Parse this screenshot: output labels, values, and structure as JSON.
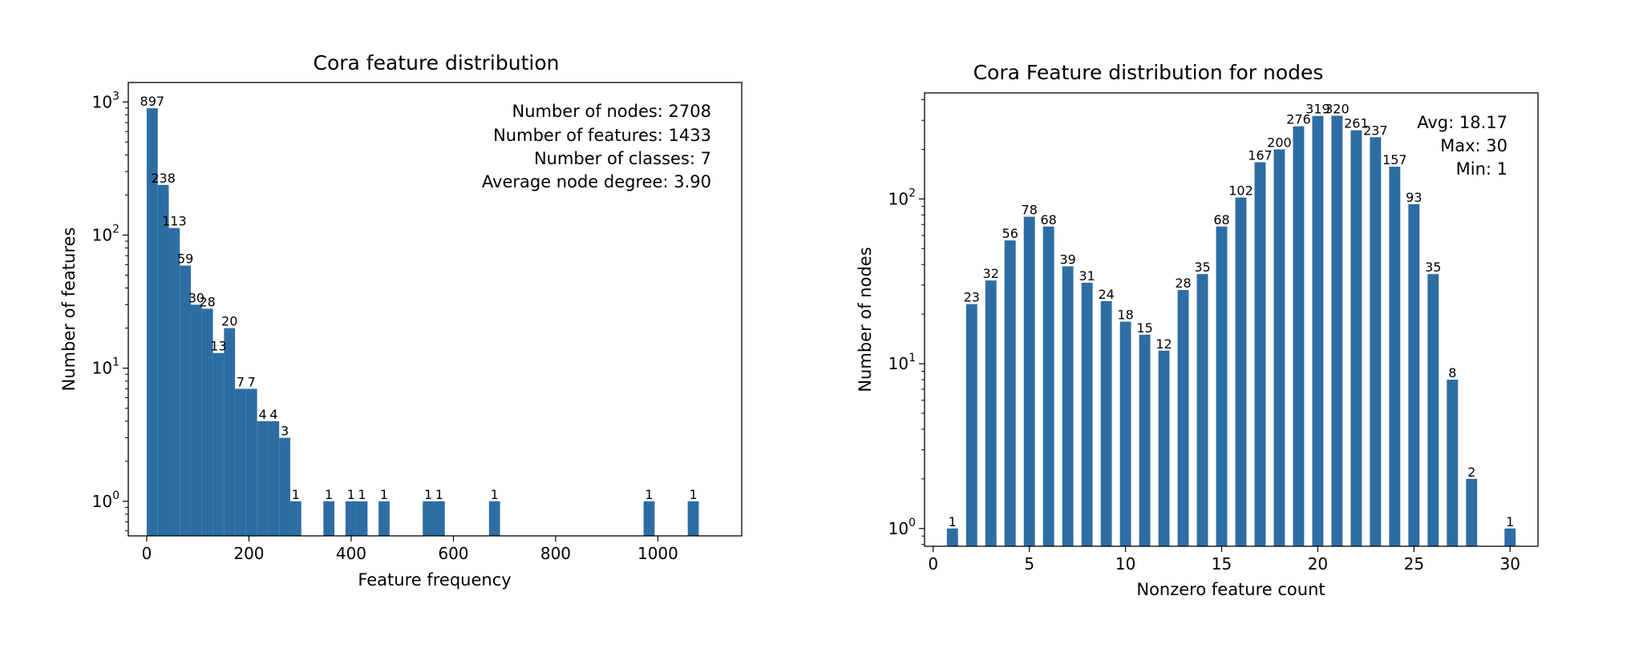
{
  "chart_data": [
    {
      "type": "bar",
      "title": "Cora feature distribution",
      "xlabel": "Feature frequency",
      "ylabel": "Number of features",
      "yscale": "log",
      "xlim": [
        -36.0,
        1164.0
      ],
      "ylim": [
        0.55,
        1400
      ],
      "xticks": [
        0,
        200,
        400,
        600,
        800,
        1000
      ],
      "yticks": [
        1,
        10,
        100,
        1000
      ],
      "bar_color": "#2e6da4",
      "annotations": [
        "Number of nodes: 2708",
        "Number of features: 1433",
        "Number of classes: 7",
        "Average node degree: 3.90"
      ],
      "bins": [
        {
          "x0": 0,
          "x1": 21.6,
          "value": 897
        },
        {
          "x0": 21.6,
          "x1": 43.2,
          "value": 238
        },
        {
          "x0": 43.2,
          "x1": 64.8,
          "value": 113
        },
        {
          "x0": 64.8,
          "x1": 86.4,
          "value": 59
        },
        {
          "x0": 86.4,
          "x1": 108.0,
          "value": 30
        },
        {
          "x0": 108.0,
          "x1": 129.6,
          "value": 28
        },
        {
          "x0": 129.6,
          "x1": 151.2,
          "value": 13
        },
        {
          "x0": 151.2,
          "x1": 172.8,
          "value": 20
        },
        {
          "x0": 172.8,
          "x1": 194.4,
          "value": 7
        },
        {
          "x0": 194.4,
          "x1": 216.0,
          "value": 7
        },
        {
          "x0": 216.0,
          "x1": 237.6,
          "value": 4
        },
        {
          "x0": 237.6,
          "x1": 259.2,
          "value": 4
        },
        {
          "x0": 259.2,
          "x1": 280.8,
          "value": 3
        },
        {
          "x0": 280.8,
          "x1": 302.4,
          "value": 1
        },
        {
          "x0": 345.6,
          "x1": 367.2,
          "value": 1
        },
        {
          "x0": 388.8,
          "x1": 410.4,
          "value": 1
        },
        {
          "x0": 410.4,
          "x1": 432.0,
          "value": 1
        },
        {
          "x0": 453.6,
          "x1": 475.2,
          "value": 1
        },
        {
          "x0": 540.0,
          "x1": 561.6,
          "value": 1
        },
        {
          "x0": 561.6,
          "x1": 583.2,
          "value": 1
        },
        {
          "x0": 669.6,
          "x1": 691.2,
          "value": 1
        },
        {
          "x0": 972.0,
          "x1": 993.6,
          "value": 1
        },
        {
          "x0": 1058.4,
          "x1": 1080.0,
          "value": 1
        }
      ]
    },
    {
      "type": "bar",
      "title": "Cora Feature distribution for nodes",
      "xlabel": "Nonzero feature count",
      "ylabel": "Number of nodes",
      "yscale": "log",
      "xlim": [
        -0.45,
        31.45
      ],
      "ylim": [
        0.78,
        440
      ],
      "xticks": [
        0,
        5,
        10,
        15,
        20,
        25,
        30
      ],
      "yticks": [
        1,
        10,
        100
      ],
      "bar_color": "#2e6da4",
      "bar_width": 0.58,
      "annotations": [
        "Avg: 18.17",
        "Max: 30",
        "Min: 1"
      ],
      "bars": [
        {
          "x": 1,
          "value": 1
        },
        {
          "x": 2,
          "value": 23
        },
        {
          "x": 3,
          "value": 32
        },
        {
          "x": 4,
          "value": 56
        },
        {
          "x": 5,
          "value": 78
        },
        {
          "x": 6,
          "value": 68
        },
        {
          "x": 7,
          "value": 39
        },
        {
          "x": 8,
          "value": 31
        },
        {
          "x": 9,
          "value": 24
        },
        {
          "x": 10,
          "value": 18
        },
        {
          "x": 11,
          "value": 15
        },
        {
          "x": 12,
          "value": 12
        },
        {
          "x": 13,
          "value": 28
        },
        {
          "x": 14,
          "value": 35
        },
        {
          "x": 15,
          "value": 68
        },
        {
          "x": 16,
          "value": 102
        },
        {
          "x": 17,
          "value": 167
        },
        {
          "x": 18,
          "value": 200
        },
        {
          "x": 19,
          "value": 276
        },
        {
          "x": 20,
          "value": 319
        },
        {
          "x": 21,
          "value": 320
        },
        {
          "x": 22,
          "value": 261
        },
        {
          "x": 23,
          "value": 237
        },
        {
          "x": 24,
          "value": 157
        },
        {
          "x": 25,
          "value": 93
        },
        {
          "x": 26,
          "value": 35
        },
        {
          "x": 27,
          "value": 8
        },
        {
          "x": 28,
          "value": 2
        },
        {
          "x": 30,
          "value": 1
        }
      ]
    }
  ]
}
